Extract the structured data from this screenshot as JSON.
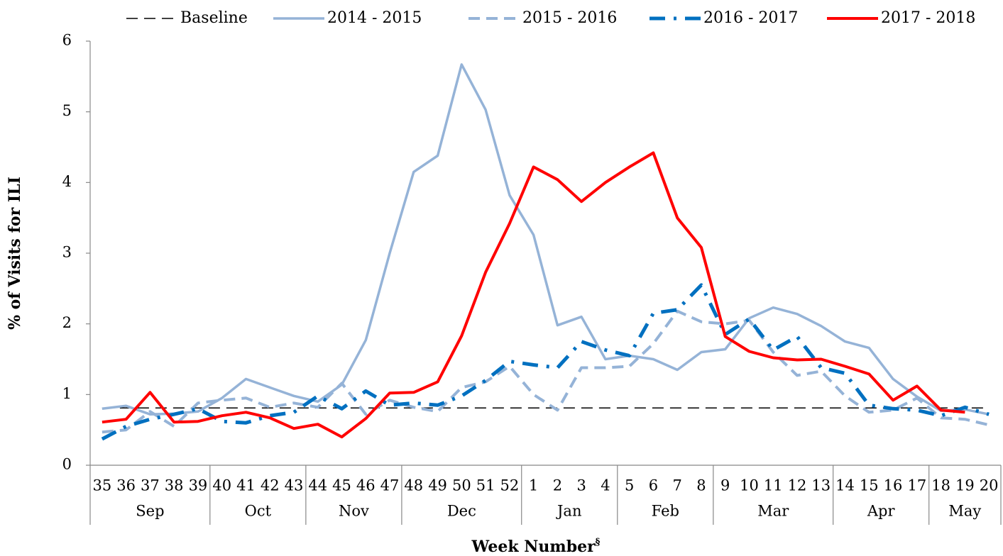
{
  "chart_data": {
    "type": "line",
    "y_label": "% of Visits for ILI",
    "x_label": "Week Number",
    "x_label_superscript": "§",
    "categories": [
      "35",
      "36",
      "37",
      "38",
      "39",
      "40",
      "41",
      "42",
      "43",
      "44",
      "45",
      "46",
      "47",
      "48",
      "49",
      "50",
      "51",
      "52",
      "1",
      "2",
      "3",
      "4",
      "5",
      "6",
      "7",
      "8",
      "9",
      "10",
      "11",
      "12",
      "13",
      "14",
      "15",
      "16",
      "17",
      "18",
      "19",
      "20"
    ],
    "groups": [
      {
        "label": "Sep",
        "count": 5
      },
      {
        "label": "Oct",
        "count": 4
      },
      {
        "label": "Nov",
        "count": 4
      },
      {
        "label": "Dec",
        "count": 5
      },
      {
        "label": "Jan",
        "count": 4
      },
      {
        "label": "Feb",
        "count": 4
      },
      {
        "label": "Mar",
        "count": 5
      },
      {
        "label": "Apr",
        "count": 4
      },
      {
        "label": "May",
        "count": 3
      }
    ],
    "ylim": [
      0,
      6
    ],
    "yticks": [
      0,
      1,
      2,
      3,
      4,
      5,
      6
    ],
    "grid": false,
    "legend": "top",
    "series": [
      {
        "name": "Baseline",
        "color": "#000000",
        "style": "dashed",
        "width": 1.5,
        "values": [
          0.81,
          0.81,
          0.81,
          0.81,
          0.81,
          0.81,
          0.81,
          0.81,
          0.81,
          0.81,
          0.81,
          0.81,
          0.81,
          0.81,
          0.81,
          0.81,
          0.81,
          0.81,
          0.81,
          0.81,
          0.81,
          0.81,
          0.81,
          0.81,
          0.81,
          0.81,
          0.81,
          0.81,
          0.81,
          0.81,
          0.81,
          0.81,
          0.81,
          0.81,
          0.81,
          0.81,
          0.81,
          0.81
        ]
      },
      {
        "name": "2014 - 2015",
        "color": "#95b3d7",
        "style": "solid",
        "width": 3.5,
        "values": [
          0.8,
          0.84,
          0.72,
          0.73,
          0.76,
          0.95,
          1.22,
          1.1,
          0.98,
          0.9,
          1.14,
          1.77,
          3.0,
          4.15,
          4.38,
          5.67,
          5.03,
          3.82,
          3.26,
          1.98,
          2.1,
          1.5,
          1.55,
          1.5,
          1.35,
          1.6,
          1.64,
          2.08,
          2.23,
          2.14,
          1.97,
          1.75,
          1.66,
          1.22,
          0.97,
          0.77,
          0.79,
          0.72
        ]
      },
      {
        "name": "2015 - 2016",
        "color": "#95b3d7",
        "style": "dashed",
        "width": 4,
        "values": [
          0.47,
          0.5,
          0.76,
          0.55,
          0.88,
          0.92,
          0.95,
          0.82,
          0.88,
          0.82,
          1.16,
          0.72,
          0.92,
          0.82,
          0.76,
          1.1,
          1.18,
          1.4,
          1.0,
          0.78,
          1.38,
          1.38,
          1.4,
          1.72,
          2.18,
          2.03,
          2.0,
          2.05,
          1.6,
          1.27,
          1.33,
          0.98,
          0.75,
          0.78,
          0.95,
          0.67,
          0.65,
          0.57
        ]
      },
      {
        "name": "2016 - 2017",
        "color": "#0070c0",
        "style": "dashdot",
        "width": 5,
        "values": [
          0.37,
          0.55,
          0.65,
          0.72,
          0.8,
          0.62,
          0.6,
          0.7,
          0.75,
          0.98,
          0.8,
          1.05,
          0.85,
          0.88,
          0.85,
          0.98,
          1.2,
          1.47,
          1.42,
          1.38,
          1.75,
          1.63,
          1.55,
          2.15,
          2.2,
          2.55,
          1.85,
          2.07,
          1.63,
          1.82,
          1.38,
          1.3,
          0.85,
          0.8,
          0.78,
          0.7,
          0.82,
          0.72
        ]
      },
      {
        "name": "2017 - 2018",
        "color": "#ff0000",
        "style": "solid",
        "width": 4,
        "values": [
          0.61,
          0.65,
          1.03,
          0.61,
          0.62,
          0.7,
          0.75,
          0.67,
          0.52,
          0.58,
          0.4,
          0.66,
          1.02,
          1.03,
          1.18,
          1.83,
          2.73,
          3.42,
          4.22,
          4.04,
          3.73,
          4.0,
          4.22,
          4.42,
          3.5,
          3.08,
          1.82,
          1.61,
          1.52,
          1.49,
          1.5,
          1.4,
          1.29,
          0.92,
          1.12,
          0.78,
          0.75,
          null
        ]
      }
    ]
  }
}
